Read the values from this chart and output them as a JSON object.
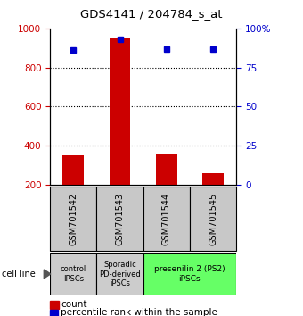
{
  "title": "GDS4141 / 204784_s_at",
  "samples": [
    "GSM701542",
    "GSM701543",
    "GSM701544",
    "GSM701545"
  ],
  "counts": [
    350,
    950,
    355,
    260
  ],
  "percentiles": [
    86,
    93,
    87,
    87
  ],
  "ylim_left": [
    200,
    1000
  ],
  "ylim_right": [
    0,
    100
  ],
  "yticks_left": [
    200,
    400,
    600,
    800,
    1000
  ],
  "yticks_right": [
    0,
    25,
    50,
    75,
    100
  ],
  "yticklabels_right": [
    "0",
    "25",
    "50",
    "75",
    "100%"
  ],
  "bar_color": "#cc0000",
  "dot_color": "#0000cc",
  "bar_width": 0.45,
  "group_labels": [
    "control\nIPSCs",
    "Sporadic\nPD-derived\niPSCs",
    "presenilin 2 (PS2)\niPSCs"
  ],
  "group_colors": [
    "#cccccc",
    "#cccccc",
    "#66ff66"
  ],
  "cell_line_label": "cell line",
  "legend_count_label": "count",
  "legend_pct_label": "percentile rank within the sample",
  "left_tick_color": "#cc0000",
  "right_tick_color": "#0000cc",
  "grid_lines": [
    400,
    600,
    800
  ],
  "sample_box_color": "#c8c8c8",
  "sample_box_edge": "#000000"
}
